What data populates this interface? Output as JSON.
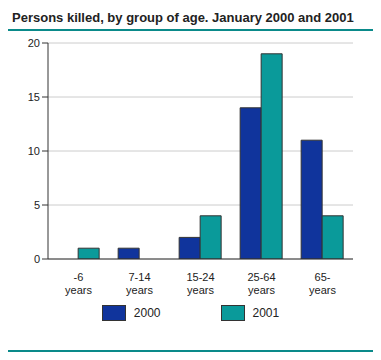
{
  "chart_data": {
    "type": "bar",
    "title": "Persons killed, by group of age. January 2000 and 2001",
    "categories": [
      "-6 years",
      "7-14 years",
      "15-24 years",
      "25-64 years",
      "65- years"
    ],
    "series": [
      {
        "name": "2000",
        "color": "#10349c",
        "values": [
          0,
          1,
          2,
          14,
          11
        ]
      },
      {
        "name": "2001",
        "color": "#0a9a9a",
        "values": [
          1,
          0,
          4,
          19,
          4
        ]
      }
    ],
    "ylim": [
      0,
      20
    ],
    "yticks": [
      0,
      5,
      10,
      15,
      20
    ],
    "grid": true,
    "legend": "bottom"
  }
}
